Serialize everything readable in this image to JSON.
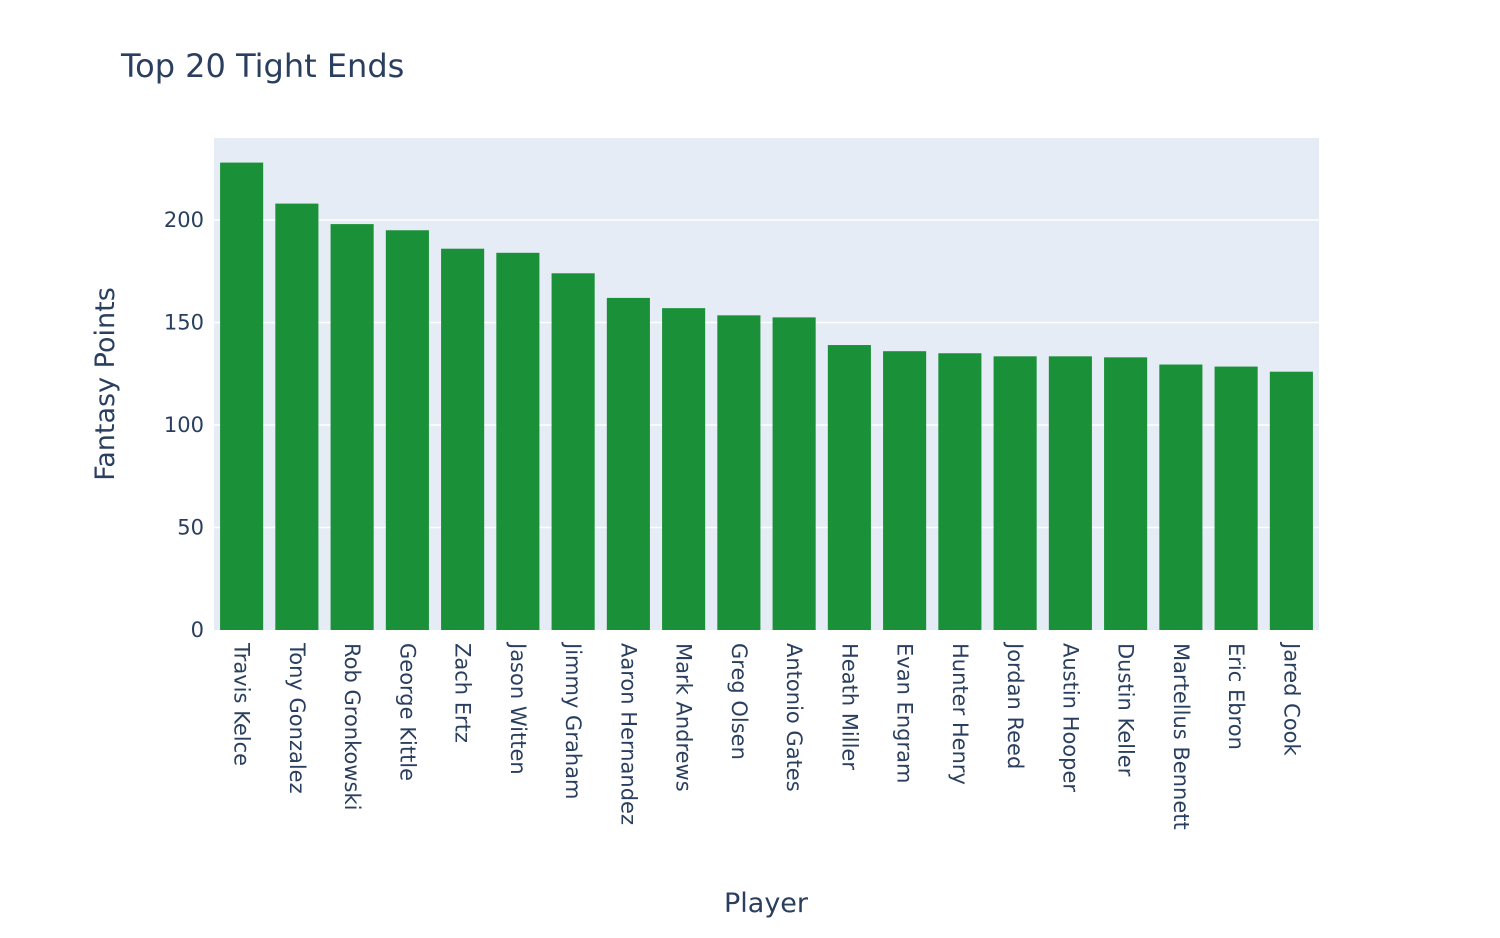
{
  "chart_data": {
    "type": "bar",
    "title": "Top 20 Tight Ends",
    "xlabel": "Player",
    "ylabel": "Fantasy Points",
    "categories": [
      "Travis Kelce",
      "Tony Gonzalez",
      "Rob Gronkowski",
      "George Kittle",
      "Zach Ertz",
      "Jason Witten",
      "Jimmy Graham",
      "Aaron Hernandez",
      "Mark Andrews",
      "Greg Olsen",
      "Antonio Gates",
      "Heath Miller",
      "Evan Engram",
      "Hunter Henry",
      "Jordan Reed",
      "Austin Hooper",
      "Dustin Keller",
      "Martellus Bennett",
      "Eric Ebron",
      "Jared Cook"
    ],
    "values": [
      228,
      208,
      198,
      195,
      186,
      184,
      174,
      162,
      157,
      153.5,
      152.5,
      139,
      136,
      135,
      133.5,
      133.5,
      133,
      129.5,
      128.5,
      126
    ],
    "ylim": [
      0,
      240
    ],
    "yticks": [
      0,
      50,
      100,
      150,
      200
    ],
    "grid": true,
    "legend": "none",
    "colors": {
      "bar": "#1a9038",
      "plot_bg": "#e5ecf6",
      "grid": "#ffffff",
      "text": "#2a3f5f"
    }
  }
}
